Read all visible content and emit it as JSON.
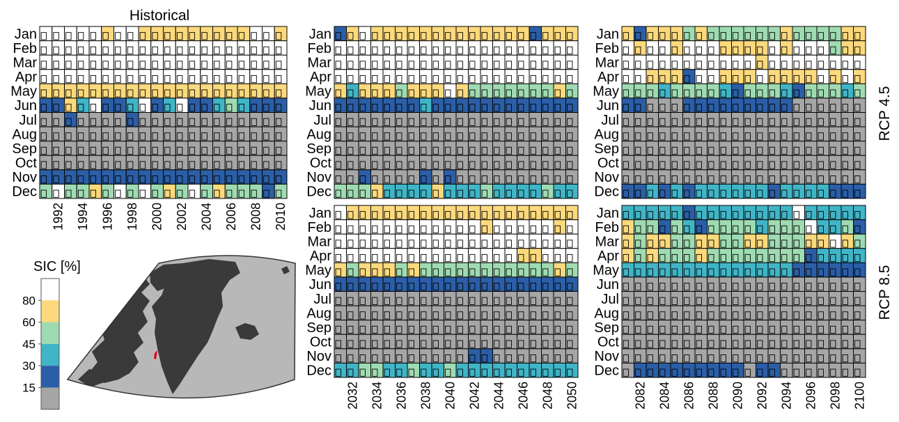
{
  "chart_data": {
    "type": "heatmap",
    "months": [
      "Jan",
      "Feb",
      "Mar",
      "Apr",
      "May",
      "Jun",
      "Jul",
      "Aug",
      "Sep",
      "Oct",
      "Nov",
      "Dec"
    ],
    "bin_colors": [
      "#a6a6a6",
      "#2b5ea6",
      "#40b5c7",
      "#9fdbb2",
      "#fcd97c",
      "#ffffff"
    ],
    "bin_legend_note": "value codes: 0 = <15, 1 = 15-30, 2 = 30-45, 3 = 45-60, 4 = 60-80, 5 = >80",
    "legend": {
      "title": "SIC [%]",
      "ticks": [
        "15",
        "30",
        "45",
        "60",
        "80"
      ]
    },
    "row_labels": {
      "rcp45": "RCP 4.5",
      "rcp85": "RCP 8.5"
    },
    "panels": [
      {
        "id": "hist",
        "title": "Historical",
        "years": [
          1991,
          1992,
          1993,
          1994,
          1995,
          1996,
          1997,
          1998,
          1999,
          2000,
          2001,
          2002,
          2003,
          2004,
          2005,
          2006,
          2007,
          2008,
          2009,
          2010
        ],
        "year_ticks": [
          "1992",
          "1994",
          "1996",
          "1998",
          "2000",
          "2002",
          "2004",
          "2006",
          "2008",
          "2010"
        ],
        "grid": [
          "55555455444444444554",
          "55555555555555555555",
          "55555555555555555555",
          "55555555555555555555",
          "44444444444444444444",
          "11425112512511232111",
          "00100001000000000000",
          "00000000000000000000",
          "00000000000000000000",
          "00000000000000000000",
          "11111111111111111111",
          "35334353534353433313"
        ]
      },
      {
        "id": "rcp45_mid",
        "years": [
          2031,
          2032,
          2033,
          2034,
          2035,
          2036,
          2037,
          2038,
          2039,
          2040,
          2041,
          2042,
          2043,
          2044,
          2045,
          2046,
          2047,
          2048,
          2049,
          2050
        ],
        "year_ticks": [
          "2032",
          "2034",
          "2036",
          "2038",
          "2040",
          "2042",
          "2044",
          "2046",
          "2048",
          "2050"
        ],
        "grid": [
          "14544444444444441444",
          "55555555555555555555",
          "55555555555555555555",
          "55555555555555555555",
          "42444344454333333343",
          "11111112111111111111",
          "00000000000000000000",
          "00000000000000000000",
          "00000000000000000000",
          "00000000000000000000",
          "00100001010000000000",
          "33342222422232222322"
        ]
      },
      {
        "id": "rcp45_end",
        "years": [
          2081,
          2082,
          2083,
          2084,
          2085,
          2086,
          2087,
          2088,
          2089,
          2090,
          2091,
          2092,
          2093,
          2094,
          2095,
          2096,
          2097,
          2098,
          2099,
          2100
        ],
        "year_ticks": [
          "2082",
          "2084",
          "2086",
          "2088",
          "2090",
          "2092",
          "2094",
          "2096",
          "2098",
          "2100"
        ],
        "grid": [
          "41444343333334333344",
          "54554555444454555344",
          "55555555555455555555",
          "55444155444544445454",
          "33323333213332133323",
          "11000111111111000000",
          "00000000000000000000",
          "00000000000000000000",
          "00000000000000000000",
          "00000000000000000000",
          "00000000000000000000",
          "11212122222212222111"
        ]
      },
      {
        "id": "rcp85_mid",
        "years": [
          2031,
          2032,
          2033,
          2034,
          2035,
          2036,
          2037,
          2038,
          2039,
          2040,
          2041,
          2042,
          2043,
          2044,
          2045,
          2046,
          2047,
          2048,
          2049,
          2050
        ],
        "year_ticks": [
          "2032",
          "2034",
          "2036",
          "2038",
          "2040",
          "2042",
          "2044",
          "2046",
          "2048",
          "2050"
        ],
        "grid": [
          "54444444444444444444",
          "55555555555545555545",
          "55555555555555555555",
          "55555555555555544555",
          "43444343333333333343",
          "11111111111111111111",
          "00000000000000000000",
          "00000000000000000000",
          "00000000000000000000",
          "00000000000000000000",
          "00000000000110000000",
          "22332232232222222222"
        ]
      },
      {
        "id": "rcp85_end",
        "years": [
          2081,
          2082,
          2083,
          2084,
          2085,
          2086,
          2087,
          2088,
          2089,
          2090,
          2091,
          2092,
          2093,
          2094,
          2095,
          2096,
          2097,
          2098,
          2099,
          2100
        ],
        "year_ticks": [
          "2082",
          "2084",
          "2086",
          "2088",
          "2090",
          "2092",
          "2094",
          "2096",
          "2098",
          "2100"
        ],
        "grid": [
          "22222122222222522222",
          "43313213333233352231",
          "43443344334433344543",
          "43433343333333312222",
          "22222222222222111111",
          "00000000000000000000",
          "00000000000000000000",
          "00000000000000000000",
          "00000000000000000000",
          "00000000000000000000",
          "00000000000000000000",
          "01111111110110000000"
        ]
      }
    ]
  },
  "map": {
    "marker_color": "#e8000d",
    "land_color": "#3a3a3a",
    "sea_color": "#b8b8b8"
  }
}
